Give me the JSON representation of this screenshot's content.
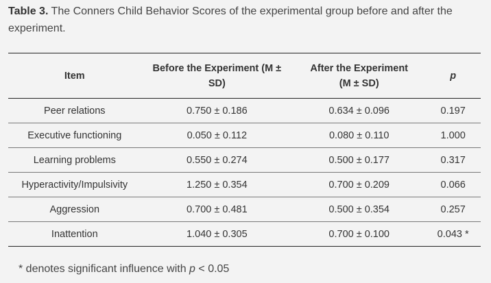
{
  "caption": {
    "label": "Table 3.",
    "text": "The Conners Child Behavior Scores of the experimental group before and after the experiment."
  },
  "table": {
    "headers": {
      "item": "Item",
      "before": "Before the Experiment (M ± SD)",
      "after_line1": "After the Experiment",
      "after_line2": "(M ± SD)",
      "p": "p"
    },
    "rows": [
      {
        "item": "Peer relations",
        "before": "0.750 ± 0.186",
        "after": "0.634 ± 0.096",
        "p": "0.197"
      },
      {
        "item": "Executive functioning",
        "before": "0.050 ± 0.112",
        "after": "0.080 ± 0.110",
        "p": "1.000"
      },
      {
        "item": "Learning problems",
        "before": "0.550 ± 0.274",
        "after": "0.500 ± 0.177",
        "p": "0.317"
      },
      {
        "item": "Hyperactivity/Impulsivity",
        "before": "1.250 ± 0.354",
        "after": "0.700 ± 0.209",
        "p": "0.066"
      },
      {
        "item": "Aggression",
        "before": "0.700 ± 0.481",
        "after": "0.500 ± 0.354",
        "p": "0.257"
      },
      {
        "item": "Inattention",
        "before": "1.040 ± 0.305",
        "after": "0.700 ± 0.100",
        "p": "0.043 *"
      }
    ]
  },
  "footnote": {
    "prefix": "* denotes significant influence with ",
    "p": "p",
    "suffix": " < 0.05"
  }
}
